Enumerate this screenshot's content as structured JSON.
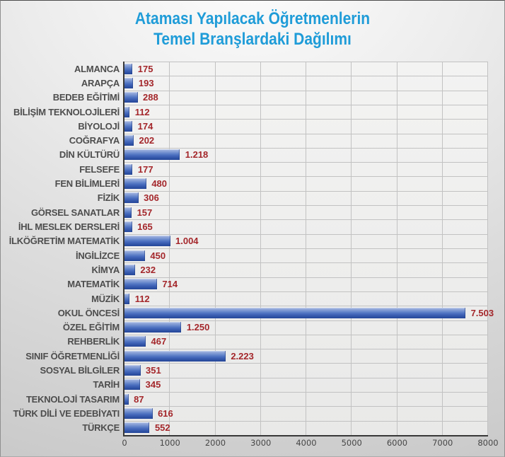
{
  "title": {
    "line1": "Ataması Yapılacak Öğretmenlerin",
    "line2": "Temel Branşlardaki Dağılımı"
  },
  "chart_data": {
    "type": "bar",
    "orientation": "horizontal",
    "title": "Ataması Yapılacak Öğretmenlerin Temel Branşlardaki Dağılımı",
    "categories": [
      "ALMANCA",
      "ARAPÇA",
      "BEDEB EĞİTİMİ",
      "BİLİŞİM TEKNOLOJİLERİ",
      "BİYOLOJİ",
      "COĞRAFYA",
      "DİN KÜLTÜRÜ",
      "FELSEFE",
      "FEN BİLİMLERİ",
      "FİZİK",
      "GÖRSEL SANATLAR",
      "İHL MESLEK DERSLERİ",
      "İLKÖĞRETİM MATEMATİK",
      "İNGİLİZCE",
      "KİMYA",
      "MATEMATİK",
      "MÜZİK",
      "OKUL ÖNCESİ",
      "ÖZEL EĞİTİM",
      "REHBERLİK",
      "SINIF ÖĞRETMENLİĞİ",
      "SOSYAL BİLGİLER",
      "TARİH",
      "TEKNOLOJİ TASARIM",
      "TÜRK DİLİ VE EDEBİYATI",
      "TÜRKÇE"
    ],
    "values": [
      175,
      193,
      288,
      112,
      174,
      202,
      1218,
      177,
      480,
      306,
      157,
      165,
      1004,
      450,
      232,
      714,
      112,
      7503,
      1250,
      467,
      2223,
      351,
      345,
      87,
      616,
      552
    ],
    "value_labels": [
      "175",
      "193",
      "288",
      "112",
      "174",
      "202",
      "1.218",
      "177",
      "480",
      "306",
      "157",
      "165",
      "1.004",
      "450",
      "232",
      "714",
      "112",
      "7.503",
      "1.250",
      "467",
      "2.223",
      "351",
      "345",
      "87",
      "616",
      "552"
    ],
    "xlabel": "",
    "ylabel": "",
    "xlim": [
      0,
      8000
    ],
    "x_ticks": [
      0,
      1000,
      2000,
      3000,
      4000,
      5000,
      6000,
      7000,
      8000
    ],
    "grid": true,
    "legend": false,
    "colors": {
      "title": "#1F9CD8",
      "bar_gradient_top": "#93AADB",
      "bar_gradient_bottom": "#26489A",
      "value_label": "#A4272B",
      "category_label": "#4D4D4D",
      "axis_label": "#474747",
      "gridline": "#C2C2C2",
      "axis_line": "#3A3A3A",
      "plot_background": "#F1F1F0",
      "chart_background_light": "#FDFDFD",
      "chart_background_dark": "#C8C8C8"
    }
  }
}
